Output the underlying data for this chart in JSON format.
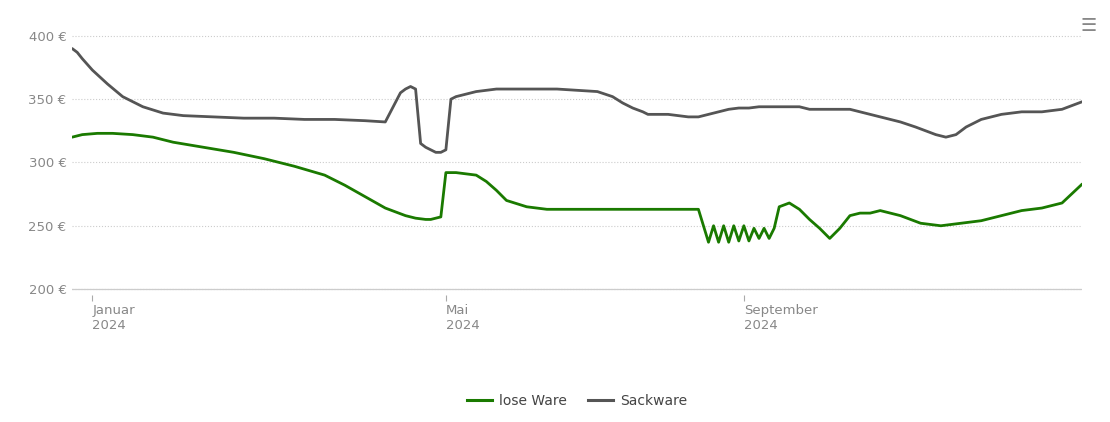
{
  "background_color": "#ffffff",
  "ylim": [
    195,
    415
  ],
  "yticks": [
    200,
    250,
    300,
    350,
    400
  ],
  "grid_color": "#cccccc",
  "grid_style": "dotted",
  "line_lose_color": "#1a7a00",
  "line_sack_color": "#555555",
  "line_width": 2.0,
  "legend_labels": [
    "lose Ware",
    "Sackware"
  ],
  "hamburger_color": "#888888",
  "lose_ware": {
    "x": [
      0.0,
      0.01,
      0.025,
      0.04,
      0.06,
      0.08,
      0.1,
      0.13,
      0.16,
      0.19,
      0.22,
      0.25,
      0.27,
      0.29,
      0.31,
      0.33,
      0.34,
      0.35,
      0.355,
      0.36,
      0.365,
      0.37,
      0.38,
      0.39,
      0.4,
      0.41,
      0.42,
      0.43,
      0.45,
      0.47,
      0.49,
      0.51,
      0.53,
      0.55,
      0.57,
      0.59,
      0.61,
      0.62,
      0.625,
      0.63,
      0.635,
      0.64,
      0.645,
      0.65,
      0.655,
      0.66,
      0.665,
      0.67,
      0.675,
      0.68,
      0.685,
      0.69,
      0.695,
      0.7,
      0.71,
      0.72,
      0.73,
      0.74,
      0.75,
      0.76,
      0.77,
      0.78,
      0.79,
      0.8,
      0.82,
      0.84,
      0.86,
      0.88,
      0.9,
      0.92,
      0.94,
      0.96,
      0.98,
      1.0
    ],
    "y": [
      320,
      322,
      323,
      323,
      322,
      320,
      316,
      312,
      308,
      303,
      297,
      290,
      282,
      273,
      264,
      258,
      256,
      255,
      255,
      256,
      257,
      292,
      292,
      291,
      290,
      285,
      278,
      270,
      265,
      263,
      263,
      263,
      263,
      263,
      263,
      263,
      263,
      263,
      250,
      237,
      250,
      237,
      250,
      237,
      250,
      238,
      250,
      238,
      248,
      240,
      248,
      240,
      248,
      265,
      268,
      263,
      255,
      248,
      240,
      248,
      258,
      260,
      260,
      262,
      258,
      252,
      250,
      252,
      254,
      258,
      262,
      264,
      268,
      283
    ]
  },
  "sackware": {
    "x": [
      0.0,
      0.005,
      0.01,
      0.02,
      0.035,
      0.05,
      0.07,
      0.09,
      0.11,
      0.14,
      0.17,
      0.2,
      0.23,
      0.26,
      0.29,
      0.31,
      0.325,
      0.33,
      0.335,
      0.34,
      0.345,
      0.35,
      0.355,
      0.36,
      0.365,
      0.37,
      0.375,
      0.38,
      0.39,
      0.4,
      0.42,
      0.44,
      0.46,
      0.48,
      0.5,
      0.52,
      0.535,
      0.545,
      0.555,
      0.565,
      0.57,
      0.58,
      0.59,
      0.6,
      0.61,
      0.62,
      0.63,
      0.64,
      0.65,
      0.66,
      0.67,
      0.68,
      0.69,
      0.7,
      0.71,
      0.72,
      0.73,
      0.74,
      0.75,
      0.76,
      0.77,
      0.78,
      0.8,
      0.82,
      0.835,
      0.845,
      0.855,
      0.865,
      0.875,
      0.885,
      0.9,
      0.92,
      0.94,
      0.96,
      0.98,
      1.0
    ],
    "y": [
      390,
      387,
      382,
      373,
      362,
      352,
      344,
      339,
      337,
      336,
      335,
      335,
      334,
      334,
      333,
      332,
      355,
      358,
      360,
      358,
      315,
      312,
      310,
      308,
      308,
      310,
      350,
      352,
      354,
      356,
      358,
      358,
      358,
      358,
      357,
      356,
      352,
      347,
      343,
      340,
      338,
      338,
      338,
      337,
      336,
      336,
      338,
      340,
      342,
      343,
      343,
      344,
      344,
      344,
      344,
      344,
      342,
      342,
      342,
      342,
      342,
      340,
      336,
      332,
      328,
      325,
      322,
      320,
      322,
      328,
      334,
      338,
      340,
      340,
      342,
      348
    ]
  }
}
